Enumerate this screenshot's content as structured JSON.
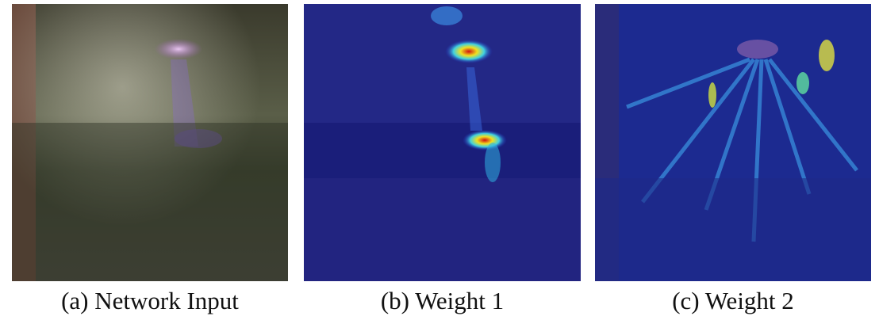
{
  "figure": {
    "panels": [
      {
        "caption": "(a) Network Input"
      },
      {
        "caption": "(b) Weight 1"
      },
      {
        "caption": "(c) Weight 2"
      }
    ]
  }
}
